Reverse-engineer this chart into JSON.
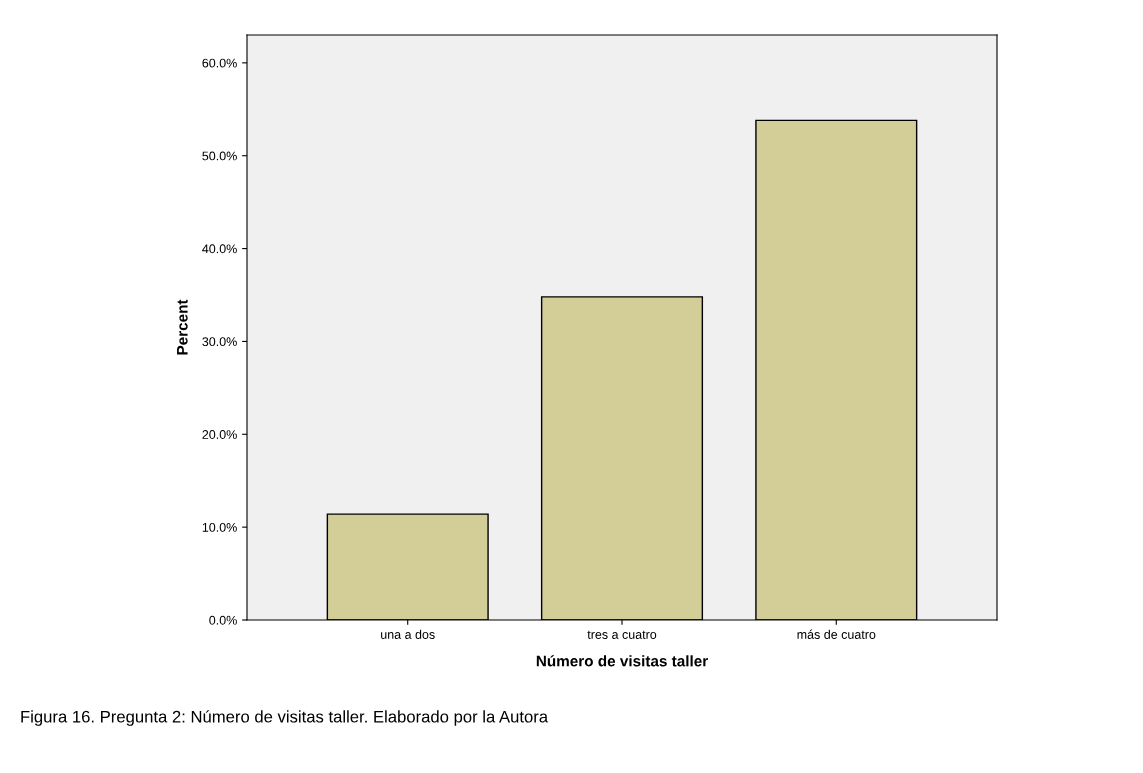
{
  "chart_data": {
    "type": "bar",
    "xlabel": "Número de visitas taller",
    "ylabel": "Percent",
    "categories": [
      "una a dos",
      "tres a cuatro",
      "más de cuatro"
    ],
    "values": [
      11.4,
      34.8,
      53.8
    ],
    "color": "#d3cd97",
    "ylim": [
      0,
      63
    ],
    "yticks": [
      {
        "value": 0,
        "label": "0.0%"
      },
      {
        "value": 10,
        "label": "10.0%"
      },
      {
        "value": 20,
        "label": "20.0%"
      },
      {
        "value": 30,
        "label": "30.0%"
      },
      {
        "value": 40,
        "label": "40.0%"
      },
      {
        "value": 50,
        "label": "50.0%"
      },
      {
        "value": 60,
        "label": "60.0%"
      }
    ],
    "grid": false,
    "legend": false,
    "annotations": [
      "Figura 16. Pregunta 2: Número de visitas taller. Elaborado por la Autora"
    ]
  }
}
